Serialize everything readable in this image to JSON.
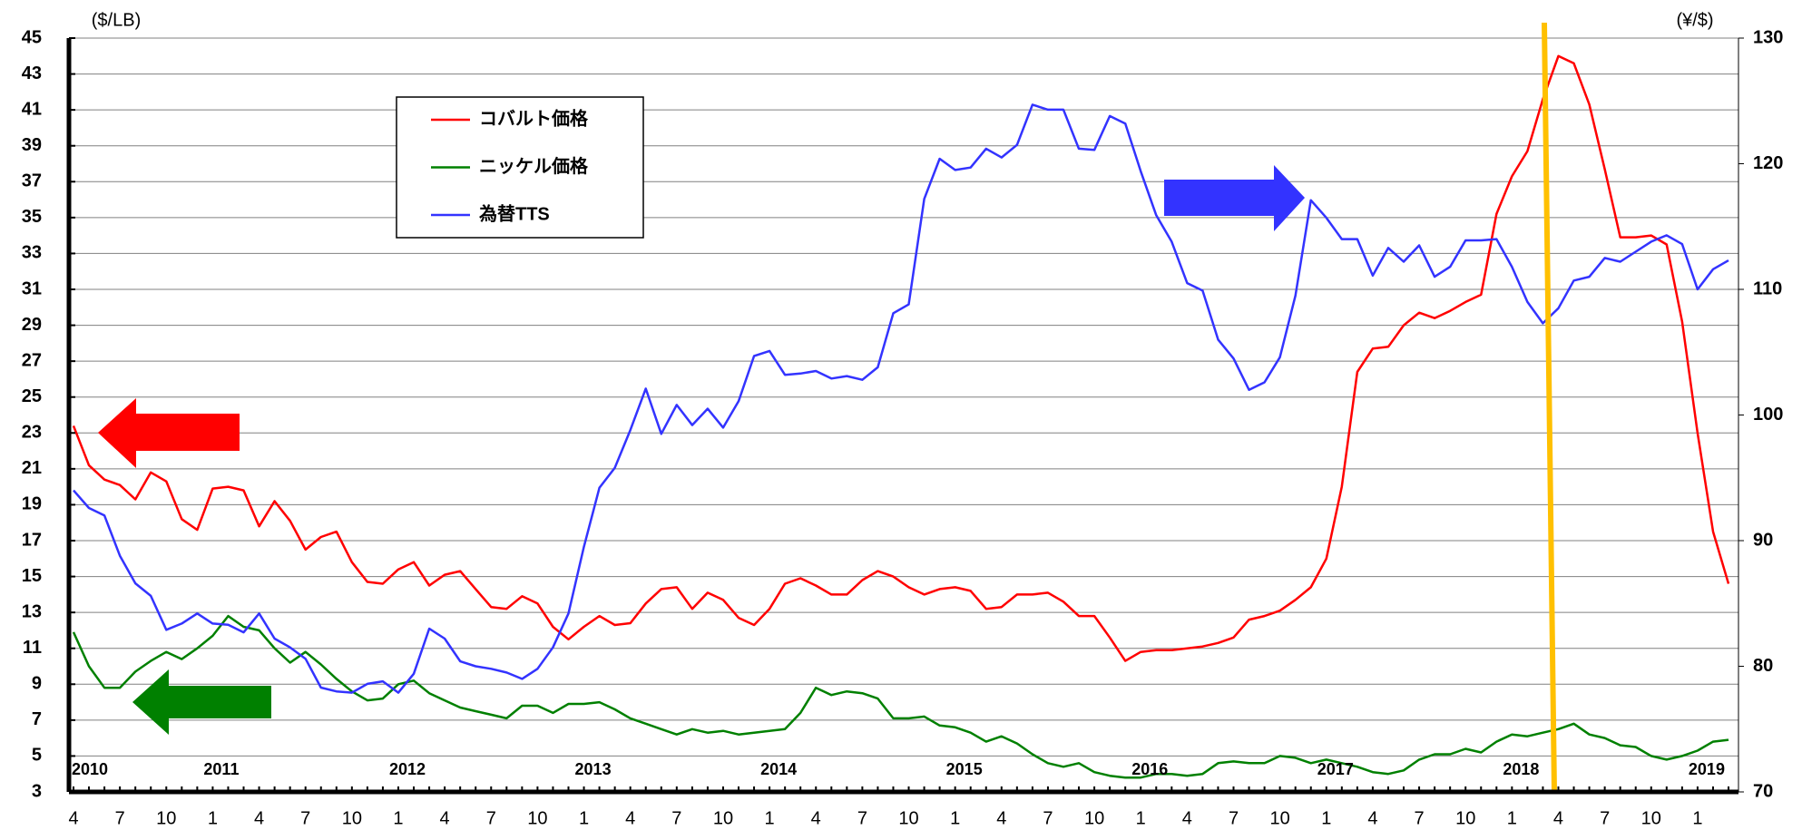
{
  "chart_data": {
    "type": "line",
    "y_axis_label": "($/LB)",
    "y2_axis_label": "(¥/$)",
    "categories": [
      "4",
      null,
      null,
      "7",
      null,
      null,
      "10",
      null,
      null,
      "1",
      null,
      null,
      "4",
      null,
      null,
      "7",
      null,
      null,
      "10",
      null,
      null,
      "1",
      null,
      null,
      "4",
      null,
      null,
      "7",
      null,
      null,
      "10",
      null,
      null,
      "1",
      null,
      null,
      "4",
      null,
      null,
      "7",
      null,
      null,
      "10",
      null,
      null,
      "1",
      null,
      null,
      "4",
      null,
      null,
      "7",
      null,
      null,
      "10",
      null,
      null,
      "1",
      null,
      null,
      "4",
      null,
      null,
      "7",
      null,
      null,
      "10",
      null,
      null,
      "1",
      null,
      null,
      "4",
      null,
      null,
      "7",
      null,
      null,
      "10",
      null,
      null,
      "1",
      null,
      null,
      "4",
      null,
      null,
      "7",
      null,
      null,
      "10",
      null,
      null,
      "1",
      null,
      null,
      "4",
      null,
      null,
      "7",
      null,
      null,
      "10",
      null,
      null,
      "1",
      null,
      null
    ],
    "years": [
      "2010",
      "2011",
      "2012",
      "2013",
      "2014",
      "2015",
      "2016",
      "2017",
      "2018",
      "2019"
    ],
    "ylim": [
      3,
      45
    ],
    "yticks": [
      3,
      5,
      7,
      9,
      11,
      13,
      15,
      17,
      19,
      21,
      23,
      25,
      27,
      29,
      31,
      33,
      35,
      37,
      39,
      41,
      43,
      45
    ],
    "y2lim": [
      70,
      130
    ],
    "y2ticks": [
      70,
      80,
      90,
      100,
      110,
      120,
      130
    ],
    "grid": true,
    "legend": "upper-left",
    "series": [
      {
        "name": "コバルト価格",
        "color": "#ff0000",
        "values": [
          23.4,
          21.2,
          20.4,
          20.1,
          19.3,
          20.8,
          20.3,
          18.2,
          17.6,
          19.9,
          20.0,
          19.8,
          17.8,
          19.2,
          18.1,
          16.5,
          17.2,
          17.5,
          15.8,
          14.7,
          14.6,
          15.4,
          15.8,
          14.5,
          15.1,
          15.3,
          14.3,
          13.3,
          13.2,
          13.9,
          13.5,
          12.2,
          11.5,
          12.2,
          12.8,
          12.3,
          12.4,
          13.5,
          14.3,
          14.4,
          13.2,
          14.1,
          13.7,
          12.7,
          12.3,
          13.2,
          14.6,
          14.9,
          14.5,
          14.0,
          14.0,
          14.8,
          15.3,
          15.0,
          14.4,
          14.0,
          14.3,
          14.4,
          14.2,
          13.2,
          13.3,
          14.0,
          14.0,
          14.1,
          13.6,
          12.8,
          12.8,
          11.6,
          10.3,
          10.8,
          10.9,
          10.9,
          11.0,
          11.1,
          11.3,
          11.6,
          12.6,
          12.8,
          13.1,
          13.7,
          14.4,
          16.0,
          20.0,
          26.4,
          27.7,
          27.8,
          29.0,
          29.7,
          29.4,
          29.8,
          30.3,
          30.7,
          35.2,
          37.3,
          38.7,
          41.6,
          44.0,
          43.6,
          41.3,
          37.7,
          33.9,
          33.9,
          34.0,
          33.5,
          29.2,
          23.0,
          17.5,
          14.6
        ]
      },
      {
        "name": "ニッケル価格",
        "color": "#008000",
        "values": [
          11.9,
          10.0,
          8.8,
          8.8,
          9.7,
          10.3,
          10.8,
          10.4,
          11.0,
          11.7,
          12.8,
          12.2,
          12.0,
          11.0,
          10.2,
          10.8,
          10.1,
          9.3,
          8.6,
          8.1,
          8.2,
          9.0,
          9.2,
          8.5,
          8.1,
          7.7,
          7.5,
          7.3,
          7.1,
          7.8,
          7.8,
          7.4,
          7.9,
          7.9,
          8.0,
          7.6,
          7.1,
          6.8,
          6.5,
          6.2,
          6.5,
          6.3,
          6.4,
          6.2,
          6.3,
          6.4,
          6.5,
          7.4,
          8.8,
          8.4,
          8.6,
          8.5,
          8.2,
          7.1,
          7.1,
          7.2,
          6.7,
          6.6,
          6.3,
          5.8,
          6.1,
          5.7,
          5.1,
          4.6,
          4.4,
          4.6,
          4.1,
          3.9,
          3.8,
          3.8,
          4.0,
          4.0,
          3.9,
          4.0,
          4.6,
          4.7,
          4.6,
          4.6,
          5.0,
          4.9,
          4.6,
          4.8,
          4.6,
          4.4,
          4.1,
          4.0,
          4.2,
          4.8,
          5.1,
          5.1,
          5.4,
          5.2,
          5.8,
          6.2,
          6.1,
          6.3,
          6.5,
          6.8,
          6.2,
          6.0,
          5.6,
          5.5,
          5.0,
          4.8,
          5.0,
          5.3,
          5.8,
          5.9
        ]
      },
      {
        "name": "為替TTS",
        "color": "#3333ff",
        "axis": "y2",
        "values": [
          94.0,
          92.6,
          92.0,
          88.8,
          86.6,
          85.6,
          82.9,
          83.4,
          84.2,
          83.4,
          83.3,
          82.7,
          84.2,
          82.2,
          81.5,
          80.6,
          78.3,
          78.0,
          77.9,
          78.6,
          78.8,
          77.9,
          79.4,
          83.0,
          82.2,
          80.4,
          80.0,
          79.8,
          79.5,
          79.0,
          79.8,
          81.5,
          84.2,
          89.5,
          94.2,
          95.8,
          98.8,
          102.1,
          98.5,
          100.8,
          99.2,
          100.5,
          99.0,
          101.1,
          104.7,
          105.1,
          103.2,
          103.3,
          103.5,
          102.9,
          103.1,
          102.8,
          103.8,
          108.1,
          108.8,
          117.2,
          120.4,
          119.5,
          119.7,
          121.2,
          120.5,
          121.5,
          124.7,
          124.3,
          124.3,
          121.2,
          121.1,
          123.8,
          123.2,
          119.4,
          115.9,
          113.8,
          110.5,
          109.9,
          106.0,
          104.5,
          102.0,
          102.6,
          104.6,
          109.5,
          117.1,
          115.7,
          114.0,
          114.0,
          111.1,
          113.3,
          112.2,
          113.5,
          111.0,
          111.8,
          113.9,
          113.9,
          114.0,
          111.8,
          109.0,
          107.3,
          108.5,
          110.7,
          111.0,
          112.5,
          112.2,
          113.0,
          113.8,
          114.3,
          113.6,
          110.0,
          111.6,
          112.3
        ]
      }
    ]
  }
}
